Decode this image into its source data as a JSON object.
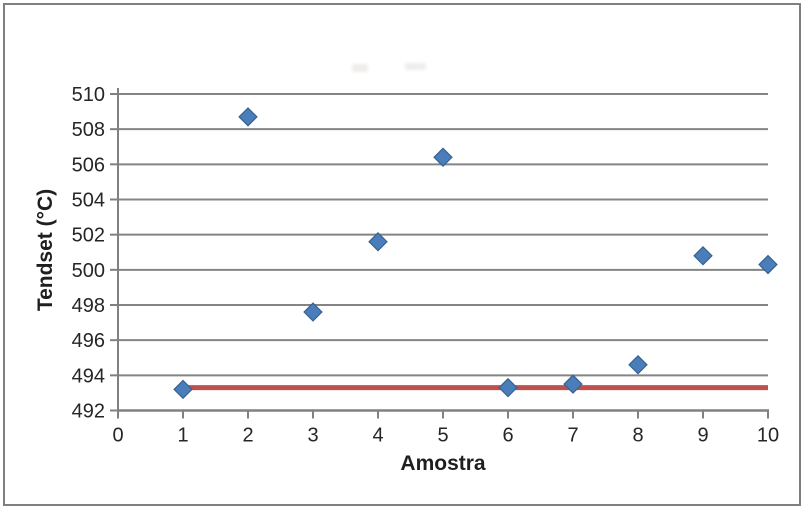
{
  "chart_data": {
    "type": "scatter",
    "title": "",
    "xlabel": "Amostra",
    "ylabel": "Tendset (°C)",
    "x": [
      1,
      2,
      3,
      4,
      5,
      6,
      7,
      8,
      9,
      10
    ],
    "series": [
      {
        "name": "Tendset",
        "type": "scatter",
        "marker": "diamond",
        "color": "#4A7EBB",
        "border_color": "#38618F",
        "values": [
          493.2,
          508.7,
          497.6,
          501.6,
          506.4,
          493.3,
          493.5,
          494.6,
          500.8,
          500.3
        ]
      },
      {
        "name": "reference-line",
        "type": "line",
        "color": "#C0504D",
        "y": 493.3,
        "x_start": 1,
        "x_end": 10
      }
    ],
    "xlim": [
      0,
      10
    ],
    "ylim": [
      492,
      510
    ],
    "xticks": [
      0,
      1,
      2,
      3,
      4,
      5,
      6,
      7,
      8,
      9,
      10
    ],
    "yticks": [
      492,
      494,
      496,
      498,
      500,
      502,
      504,
      506,
      508,
      510
    ],
    "grid": "horizontal",
    "legend_position": "none",
    "colors": {
      "grid": "#848484",
      "axis": "#808080",
      "tick_text": "#262626",
      "frame_border": "#7F7F7F",
      "background": "#FFFFFF"
    }
  }
}
